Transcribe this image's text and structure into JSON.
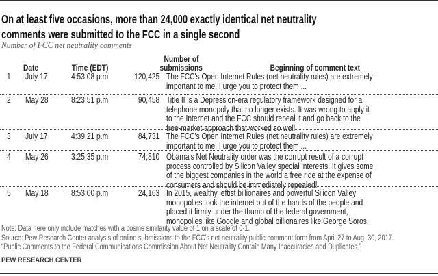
{
  "title_lines": [
    "On at least five occasions, more than 24,000 exactly identical net neutrality",
    "comments were submitted to the FCC in a single second"
  ],
  "subtitle": "Number of FCC net neutrality comments",
  "chart_data": {
    "type": "table",
    "columns": [
      "",
      "Date",
      "Time (EDT)",
      "Number of submissions",
      "Beginning of comment text"
    ],
    "header_submissions_lines": [
      "Number of",
      "submissions"
    ],
    "rows": [
      {
        "rank": "1",
        "date": "July 17",
        "time": "4:53:08 p.m.",
        "submissions": "120,425",
        "text": [
          "The FCC's Open Internet Rules (net neutrality rules) are extremely",
          "important to me. I urge you to protect them ..."
        ]
      },
      {
        "rank": "2",
        "date": "May 28",
        "time": "8:23:51 p.m.",
        "submissions": "90,458",
        "text": [
          "Title II is a Depression-era regulatory framework designed for a",
          "telephone monopoly that no longer exists. It was wrong to apply it",
          "to the Internet and the FCC should repeal it and go back to the",
          "free-market approach  that worked so well."
        ]
      },
      {
        "rank": "3",
        "date": "July 17",
        "time": "4:39:21 p.m.",
        "submissions": "84,731",
        "text": [
          "The FCC's Open Internet Rules (net neutrality rules) are extremely",
          "important to me. I urge you to protect them ..."
        ]
      },
      {
        "rank": "4",
        "date": "May 26",
        "time": "3:25:35 p.m.",
        "submissions": "74,810",
        "text": [
          "Obama's Net Neutrality order was the corrupt result of a corrupt",
          "process controlled by Silicon Valley special interests. It gives some",
          "of the biggest companies in the world a free ride at the expense of",
          "consumers and should be immediately repealed!"
        ]
      },
      {
        "rank": "5",
        "date": "May 18",
        "time": "8:53:00 p.m.",
        "submissions": "24,163",
        "text": [
          "In 2015, wealthy leftist billionaires and powerful Silicon Valley",
          "monopolies took the internet out of the hands of the people  and",
          "placed it firmly under the thumb of the federal government,",
          "monopolies like Google and global billionaires like George Soros."
        ]
      }
    ]
  },
  "notes": [
    "Note: Data here only include matches with a cosine similarity value of 1 on a scale of 0-1.",
    "Source: Pew Research Center analysis of online submissions to the FCC's net neutrality public comment form from April 27 to Aug. 30, 2017.",
    "“Public Comments to the Federal Communications Commission About Net Neutrality Contain Many Inaccuracies and Duplicates ”"
  ],
  "brand": "PEW RESEARCH CENTER",
  "colors": {
    "text": "#222222",
    "rule": "#333333",
    "note": "#555555"
  }
}
